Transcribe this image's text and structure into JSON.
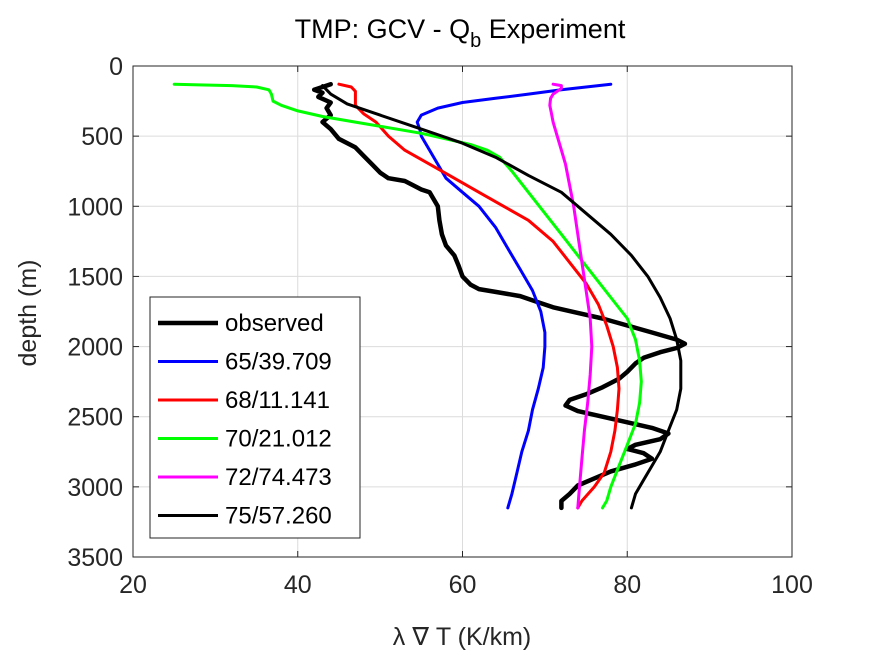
{
  "chart_data": {
    "type": "line",
    "title": {
      "main": "TMP: GCV - Q",
      "subscript": "b",
      "rest": " Experiment"
    },
    "xlabel": "λ ∇ T (K/km)",
    "ylabel": "depth (m)",
    "xlim": [
      20,
      100
    ],
    "ylim": [
      0,
      3500
    ],
    "y_reversed": true,
    "grid": true,
    "legend_placement": "bottom-left",
    "x_ticks": [
      "20",
      "40",
      "60",
      "80",
      "100"
    ],
    "y_ticks": [
      "0",
      "500",
      "1000",
      "1500",
      "2000",
      "2500",
      "3000",
      "3500"
    ],
    "series": [
      {
        "name": "observed",
        "color": "#000000",
        "thick": true,
        "points": [
          [
            44,
            130
          ],
          [
            43,
            150
          ],
          [
            42,
            170
          ],
          [
            43,
            190
          ],
          [
            42.5,
            220
          ],
          [
            44,
            260
          ],
          [
            43.5,
            300
          ],
          [
            44,
            350
          ],
          [
            43,
            400
          ],
          [
            44,
            450
          ],
          [
            45,
            520
          ],
          [
            47,
            580
          ],
          [
            48,
            640
          ],
          [
            49,
            700
          ],
          [
            50,
            760
          ],
          [
            51,
            800
          ],
          [
            53,
            820
          ],
          [
            54,
            850
          ],
          [
            55,
            880
          ],
          [
            56,
            900
          ],
          [
            56.5,
            950
          ],
          [
            57,
            1000
          ],
          [
            57.2,
            1100
          ],
          [
            57.5,
            1200
          ],
          [
            58,
            1280
          ],
          [
            59,
            1350
          ],
          [
            59.5,
            1420
          ],
          [
            60,
            1500
          ],
          [
            61,
            1560
          ],
          [
            62,
            1590
          ],
          [
            64,
            1610
          ],
          [
            67,
            1640
          ],
          [
            69,
            1680
          ],
          [
            71,
            1720
          ],
          [
            74,
            1760
          ],
          [
            77,
            1800
          ],
          [
            80,
            1850
          ],
          [
            83,
            1900
          ],
          [
            86,
            1950
          ],
          [
            87,
            1980
          ],
          [
            86,
            2010
          ],
          [
            84,
            2040
          ],
          [
            82,
            2080
          ],
          [
            81,
            2120
          ],
          [
            80,
            2180
          ],
          [
            79,
            2230
          ],
          [
            77,
            2290
          ],
          [
            75,
            2340
          ],
          [
            73,
            2380
          ],
          [
            72.5,
            2420
          ],
          [
            74,
            2460
          ],
          [
            77,
            2500
          ],
          [
            80,
            2540
          ],
          [
            83,
            2580
          ],
          [
            85,
            2620
          ],
          [
            84,
            2660
          ],
          [
            81,
            2700
          ],
          [
            80,
            2730
          ],
          [
            82,
            2760
          ],
          [
            83,
            2800
          ],
          [
            81,
            2840
          ],
          [
            78,
            2890
          ],
          [
            76,
            2940
          ],
          [
            74,
            2990
          ],
          [
            73,
            3050
          ],
          [
            72,
            3100
          ],
          [
            72,
            3150
          ]
        ]
      },
      {
        "name": "65/39.709",
        "color": "#0000ff",
        "thick": false,
        "points": [
          [
            78,
            130
          ],
          [
            75,
            150
          ],
          [
            72,
            170
          ],
          [
            68,
            200
          ],
          [
            64,
            230
          ],
          [
            60,
            260
          ],
          [
            57,
            300
          ],
          [
            55,
            350
          ],
          [
            54.5,
            400
          ],
          [
            54.8,
            450
          ],
          [
            55,
            500
          ],
          [
            56,
            600
          ],
          [
            57,
            700
          ],
          [
            58,
            800
          ],
          [
            60,
            900
          ],
          [
            62,
            1000
          ],
          [
            64,
            1150
          ],
          [
            65.5,
            1300
          ],
          [
            67,
            1450
          ],
          [
            68.5,
            1600
          ],
          [
            69.5,
            1750
          ],
          [
            70,
            1900
          ],
          [
            70,
            2000
          ],
          [
            69.8,
            2150
          ],
          [
            69.2,
            2300
          ],
          [
            68.5,
            2450
          ],
          [
            68,
            2600
          ],
          [
            67.2,
            2750
          ],
          [
            66.6,
            2900
          ],
          [
            66,
            3050
          ],
          [
            65.5,
            3150
          ]
        ]
      },
      {
        "name": "68/11.141",
        "color": "#ff0000",
        "thick": false,
        "points": [
          [
            45,
            130
          ],
          [
            46.5,
            150
          ],
          [
            47,
            180
          ],
          [
            47,
            220
          ],
          [
            47,
            280
          ],
          [
            48,
            340
          ],
          [
            49.5,
            400
          ],
          [
            51,
            500
          ],
          [
            53,
            600
          ],
          [
            56,
            700
          ],
          [
            59,
            800
          ],
          [
            62,
            900
          ],
          [
            65,
            1000
          ],
          [
            68,
            1100
          ],
          [
            71,
            1250
          ],
          [
            73,
            1400
          ],
          [
            75,
            1550
          ],
          [
            76.5,
            1700
          ],
          [
            77.5,
            1850
          ],
          [
            78.3,
            2000
          ],
          [
            78.8,
            2150
          ],
          [
            79,
            2300
          ],
          [
            78.8,
            2450
          ],
          [
            78.5,
            2600
          ],
          [
            78,
            2750
          ],
          [
            77.2,
            2900
          ],
          [
            76,
            3000
          ],
          [
            74.5,
            3100
          ],
          [
            74,
            3150
          ]
        ]
      },
      {
        "name": "70/21.012",
        "color": "#00ff00",
        "thick": false,
        "points": [
          [
            25,
            130
          ],
          [
            28,
            135
          ],
          [
            32,
            140
          ],
          [
            35,
            150
          ],
          [
            36.5,
            170
          ],
          [
            36.8,
            200
          ],
          [
            37,
            250
          ],
          [
            38,
            280
          ],
          [
            40,
            320
          ],
          [
            43,
            360
          ],
          [
            47,
            400
          ],
          [
            51,
            440
          ],
          [
            55,
            480
          ],
          [
            58,
            520
          ],
          [
            61,
            560
          ],
          [
            63,
            600
          ],
          [
            64.5,
            650
          ],
          [
            66,
            750
          ],
          [
            68,
            900
          ],
          [
            70,
            1050
          ],
          [
            72,
            1200
          ],
          [
            74,
            1350
          ],
          [
            76,
            1500
          ],
          [
            78,
            1650
          ],
          [
            80,
            1800
          ],
          [
            81,
            1950
          ],
          [
            81.5,
            2100
          ],
          [
            81.7,
            2250
          ],
          [
            81.5,
            2400
          ],
          [
            81,
            2550
          ],
          [
            80,
            2700
          ],
          [
            79,
            2850
          ],
          [
            78,
            3000
          ],
          [
            77.5,
            3100
          ],
          [
            77,
            3150
          ]
        ]
      },
      {
        "name": "72/74.473",
        "color": "#ff00ff",
        "thick": false,
        "points": [
          [
            71,
            130
          ],
          [
            72,
            140
          ],
          [
            72,
            160
          ],
          [
            71.5,
            180
          ],
          [
            71,
            200
          ],
          [
            70.7,
            230
          ],
          [
            70.6,
            280
          ],
          [
            70.8,
            340
          ],
          [
            71,
            400
          ],
          [
            71.5,
            500
          ],
          [
            72,
            600
          ],
          [
            72.5,
            700
          ],
          [
            73,
            850
          ],
          [
            73.5,
            1000
          ],
          [
            74,
            1200
          ],
          [
            74.5,
            1400
          ],
          [
            75,
            1600
          ],
          [
            75.5,
            1800
          ],
          [
            75.7,
            2000
          ],
          [
            75.5,
            2200
          ],
          [
            75.2,
            2400
          ],
          [
            74.8,
            2600
          ],
          [
            74.5,
            2800
          ],
          [
            74.2,
            3000
          ],
          [
            74,
            3150
          ]
        ]
      },
      {
        "name": "75/57.260",
        "color": "#000000",
        "thick": false,
        "points": [
          [
            43,
            140
          ],
          [
            44,
            200
          ],
          [
            46,
            270
          ],
          [
            50,
            350
          ],
          [
            55,
            450
          ],
          [
            60,
            550
          ],
          [
            64,
            650
          ],
          [
            68,
            780
          ],
          [
            72,
            900
          ],
          [
            75,
            1050
          ],
          [
            78,
            1200
          ],
          [
            80.5,
            1350
          ],
          [
            82.5,
            1500
          ],
          [
            84,
            1650
          ],
          [
            85.2,
            1800
          ],
          [
            86,
            1950
          ],
          [
            86.5,
            2100
          ],
          [
            86.5,
            2300
          ],
          [
            86,
            2450
          ],
          [
            85,
            2600
          ],
          [
            84,
            2750
          ],
          [
            83,
            2850
          ],
          [
            82,
            2950
          ],
          [
            81,
            3050
          ],
          [
            80.5,
            3150
          ]
        ]
      }
    ]
  }
}
